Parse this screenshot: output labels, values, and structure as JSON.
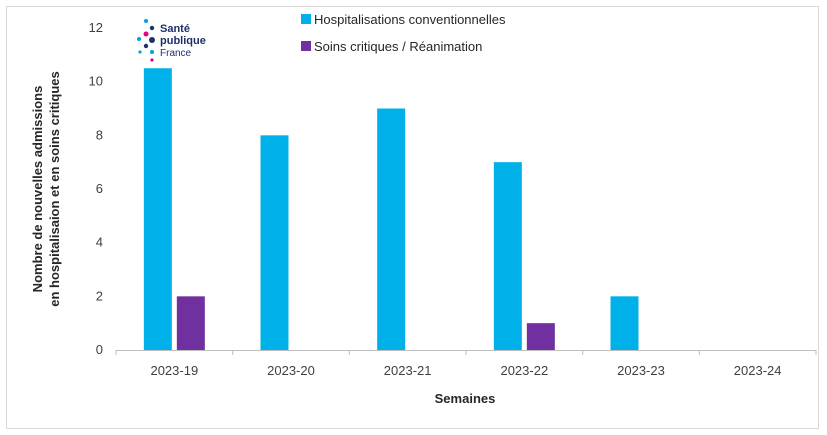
{
  "logo": {
    "line1": "Santé",
    "line2": "publique",
    "line3": "France"
  },
  "colors": {
    "hospitalisations": "#00b0e8",
    "soins_critiques": "#7030a0",
    "axis": "#bfbfbf",
    "text": "#404040"
  },
  "chart_data": {
    "type": "bar",
    "categories": [
      "2023-19",
      "2023-20",
      "2023-21",
      "2023-22",
      "2023-23",
      "2023-24"
    ],
    "series": [
      {
        "name": "Hospitalisations conventionnelles",
        "values": [
          10.5,
          8,
          9,
          7,
          2,
          0
        ]
      },
      {
        "name": "Soins critiques / Réanimation",
        "values": [
          2,
          0,
          0,
          1,
          0,
          0
        ]
      }
    ],
    "xlabel": "Semaines",
    "ylabel_line1": "Nombre de nouvelles admissions",
    "ylabel_line2": "en hospitalisaion et en soins critiques",
    "ylim": [
      0,
      12
    ],
    "yticks": [
      0,
      2,
      4,
      6,
      8,
      10,
      12
    ],
    "legend_position": "top"
  }
}
